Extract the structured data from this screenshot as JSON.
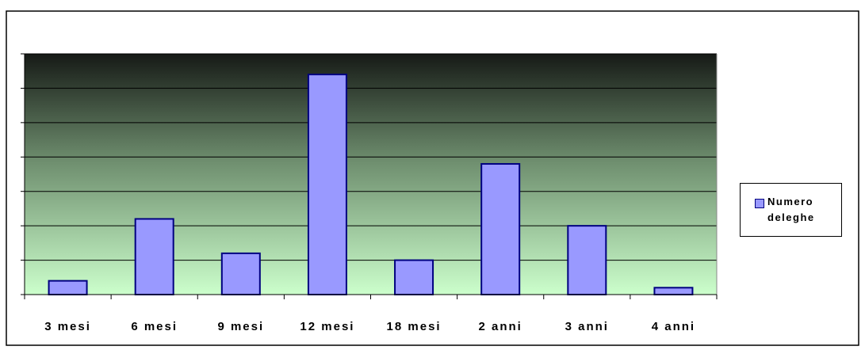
{
  "chart_data": {
    "type": "bar",
    "categories": [
      "3 mesi",
      "6 mesi",
      "9 mesi",
      "12 mesi",
      "18 mesi",
      "2 anni",
      "3 anni",
      "4 anni"
    ],
    "series": [
      {
        "name": "Numero deleghe",
        "color": "#9999ff",
        "values": [
          0.4,
          2.2,
          1.2,
          6.4,
          1.0,
          3.8,
          2.0,
          0.2
        ]
      }
    ],
    "ylim": [
      0,
      7
    ],
    "yticks": [
      0,
      1,
      2,
      3,
      4,
      5,
      6,
      7
    ],
    "grid": true,
    "legend": "right"
  }
}
